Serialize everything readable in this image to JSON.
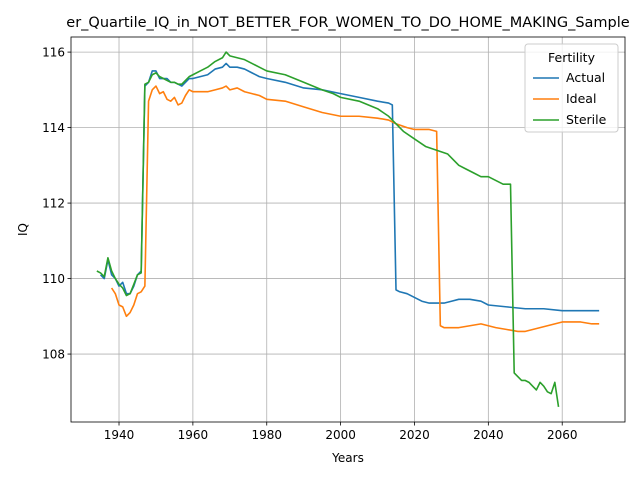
{
  "chart_data": {
    "type": "line",
    "title": "er_Quartile_IQ_in_NOT_BETTER_FOR_WOMEN_TO_DO_HOME_MAKING_Sample",
    "xlabel": "Years",
    "ylabel": "IQ",
    "xlim": [
      1927,
      2077
    ],
    "ylim": [
      106.2,
      116.4
    ],
    "x_ticks": [
      1940,
      1960,
      1980,
      2000,
      2020,
      2040,
      2060
    ],
    "y_ticks": [
      108,
      110,
      112,
      114,
      116
    ],
    "grid": true,
    "legend": {
      "title": "Fertility",
      "placement": "upper right"
    },
    "series": [
      {
        "name": "Actual",
        "color": "#1f77b4",
        "points": [
          [
            1935,
            110.1
          ],
          [
            1936,
            110.0
          ],
          [
            1937,
            110.5
          ],
          [
            1938,
            110.1
          ],
          [
            1939,
            110.0
          ],
          [
            1940,
            109.8
          ],
          [
            1941,
            109.9
          ],
          [
            1942,
            109.6
          ],
          [
            1943,
            109.6
          ],
          [
            1944,
            109.8
          ],
          [
            1945,
            110.1
          ],
          [
            1946,
            110.2
          ],
          [
            1947,
            115.1
          ],
          [
            1948,
            115.2
          ],
          [
            1949,
            115.5
          ],
          [
            1950,
            115.5
          ],
          [
            1951,
            115.3
          ],
          [
            1952,
            115.3
          ],
          [
            1953,
            115.3
          ],
          [
            1954,
            115.2
          ],
          [
            1955,
            115.2
          ],
          [
            1956,
            115.15
          ],
          [
            1957,
            115.1
          ],
          [
            1958,
            115.2
          ],
          [
            1959,
            115.3
          ],
          [
            1960,
            115.3
          ],
          [
            1962,
            115.35
          ],
          [
            1964,
            115.4
          ],
          [
            1966,
            115.55
          ],
          [
            1968,
            115.6
          ],
          [
            1969,
            115.7
          ],
          [
            1970,
            115.6
          ],
          [
            1972,
            115.6
          ],
          [
            1974,
            115.55
          ],
          [
            1976,
            115.45
          ],
          [
            1978,
            115.35
          ],
          [
            1980,
            115.3
          ],
          [
            1985,
            115.2
          ],
          [
            1990,
            115.05
          ],
          [
            1995,
            115.0
          ],
          [
            2000,
            114.9
          ],
          [
            2005,
            114.8
          ],
          [
            2010,
            114.7
          ],
          [
            2013,
            114.65
          ],
          [
            2014,
            114.6
          ],
          [
            2015,
            109.7
          ],
          [
            2016,
            109.65
          ],
          [
            2018,
            109.6
          ],
          [
            2020,
            109.5
          ],
          [
            2022,
            109.4
          ],
          [
            2024,
            109.35
          ],
          [
            2026,
            109.35
          ],
          [
            2028,
            109.35
          ],
          [
            2030,
            109.4
          ],
          [
            2032,
            109.45
          ],
          [
            2035,
            109.45
          ],
          [
            2038,
            109.4
          ],
          [
            2040,
            109.3
          ],
          [
            2045,
            109.25
          ],
          [
            2050,
            109.2
          ],
          [
            2055,
            109.2
          ],
          [
            2060,
            109.15
          ],
          [
            2065,
            109.15
          ],
          [
            2070,
            109.15
          ]
        ]
      },
      {
        "name": "Ideal",
        "color": "#ff7f0e",
        "points": [
          [
            1938,
            109.75
          ],
          [
            1939,
            109.6
          ],
          [
            1940,
            109.3
          ],
          [
            1941,
            109.25
          ],
          [
            1942,
            109.0
          ],
          [
            1943,
            109.1
          ],
          [
            1944,
            109.3
          ],
          [
            1945,
            109.6
          ],
          [
            1946,
            109.65
          ],
          [
            1947,
            109.8
          ],
          [
            1948,
            114.7
          ],
          [
            1949,
            115.0
          ],
          [
            1950,
            115.1
          ],
          [
            1951,
            114.9
          ],
          [
            1952,
            114.95
          ],
          [
            1953,
            114.75
          ],
          [
            1954,
            114.7
          ],
          [
            1955,
            114.8
          ],
          [
            1956,
            114.6
          ],
          [
            1957,
            114.65
          ],
          [
            1958,
            114.85
          ],
          [
            1959,
            115.0
          ],
          [
            1960,
            114.95
          ],
          [
            1962,
            114.95
          ],
          [
            1964,
            114.95
          ],
          [
            1966,
            115.0
          ],
          [
            1968,
            115.05
          ],
          [
            1969,
            115.1
          ],
          [
            1970,
            115.0
          ],
          [
            1972,
            115.05
          ],
          [
            1974,
            114.95
          ],
          [
            1976,
            114.9
          ],
          [
            1978,
            114.85
          ],
          [
            1980,
            114.75
          ],
          [
            1985,
            114.7
          ],
          [
            1990,
            114.55
          ],
          [
            1995,
            114.4
          ],
          [
            2000,
            114.3
          ],
          [
            2005,
            114.3
          ],
          [
            2010,
            114.25
          ],
          [
            2013,
            114.2
          ],
          [
            2015,
            114.1
          ],
          [
            2018,
            114.0
          ],
          [
            2020,
            113.95
          ],
          [
            2024,
            113.95
          ],
          [
            2026,
            113.9
          ],
          [
            2027,
            108.75
          ],
          [
            2028,
            108.7
          ],
          [
            2030,
            108.7
          ],
          [
            2032,
            108.7
          ],
          [
            2035,
            108.75
          ],
          [
            2038,
            108.8
          ],
          [
            2040,
            108.75
          ],
          [
            2042,
            108.7
          ],
          [
            2045,
            108.65
          ],
          [
            2048,
            108.6
          ],
          [
            2050,
            108.6
          ],
          [
            2052,
            108.65
          ],
          [
            2054,
            108.7
          ],
          [
            2056,
            108.75
          ],
          [
            2058,
            108.8
          ],
          [
            2060,
            108.85
          ],
          [
            2062,
            108.85
          ],
          [
            2065,
            108.85
          ],
          [
            2068,
            108.8
          ],
          [
            2070,
            108.8
          ]
        ]
      },
      {
        "name": "Sterile",
        "color": "#2ca02c",
        "points": [
          [
            1934,
            110.2
          ],
          [
            1935,
            110.15
          ],
          [
            1936,
            110.05
          ],
          [
            1937,
            110.55
          ],
          [
            1938,
            110.2
          ],
          [
            1939,
            110.0
          ],
          [
            1940,
            109.85
          ],
          [
            1941,
            109.75
          ],
          [
            1942,
            109.55
          ],
          [
            1943,
            109.6
          ],
          [
            1944,
            109.85
          ],
          [
            1945,
            110.1
          ],
          [
            1946,
            110.15
          ],
          [
            1947,
            115.15
          ],
          [
            1948,
            115.2
          ],
          [
            1949,
            115.4
          ],
          [
            1950,
            115.45
          ],
          [
            1951,
            115.35
          ],
          [
            1952,
            115.3
          ],
          [
            1953,
            115.25
          ],
          [
            1954,
            115.2
          ],
          [
            1955,
            115.2
          ],
          [
            1956,
            115.15
          ],
          [
            1957,
            115.15
          ],
          [
            1958,
            115.25
          ],
          [
            1959,
            115.35
          ],
          [
            1960,
            115.4
          ],
          [
            1962,
            115.5
          ],
          [
            1964,
            115.6
          ],
          [
            1966,
            115.75
          ],
          [
            1968,
            115.85
          ],
          [
            1969,
            116.0
          ],
          [
            1970,
            115.9
          ],
          [
            1972,
            115.85
          ],
          [
            1974,
            115.8
          ],
          [
            1976,
            115.7
          ],
          [
            1978,
            115.6
          ],
          [
            1980,
            115.5
          ],
          [
            1985,
            115.4
          ],
          [
            1990,
            115.2
          ],
          [
            1995,
            115.0
          ],
          [
            1998,
            114.9
          ],
          [
            2000,
            114.8
          ],
          [
            2005,
            114.7
          ],
          [
            2010,
            114.5
          ],
          [
            2013,
            114.3
          ],
          [
            2015,
            114.1
          ],
          [
            2017,
            113.9
          ],
          [
            2020,
            113.7
          ],
          [
            2023,
            113.5
          ],
          [
            2026,
            113.4
          ],
          [
            2029,
            113.3
          ],
          [
            2030,
            113.2
          ],
          [
            2032,
            113.0
          ],
          [
            2034,
            112.9
          ],
          [
            2036,
            112.8
          ],
          [
            2038,
            112.7
          ],
          [
            2040,
            112.7
          ],
          [
            2042,
            112.6
          ],
          [
            2044,
            112.5
          ],
          [
            2046,
            112.5
          ],
          [
            2047,
            107.5
          ],
          [
            2048,
            107.4
          ],
          [
            2049,
            107.3
          ],
          [
            2050,
            107.3
          ],
          [
            2051,
            107.25
          ],
          [
            2052,
            107.15
          ],
          [
            2053,
            107.05
          ],
          [
            2054,
            107.25
          ],
          [
            2055,
            107.15
          ],
          [
            2056,
            107.0
          ],
          [
            2057,
            106.95
          ],
          [
            2058,
            107.25
          ],
          [
            2059,
            106.6
          ]
        ]
      }
    ]
  }
}
